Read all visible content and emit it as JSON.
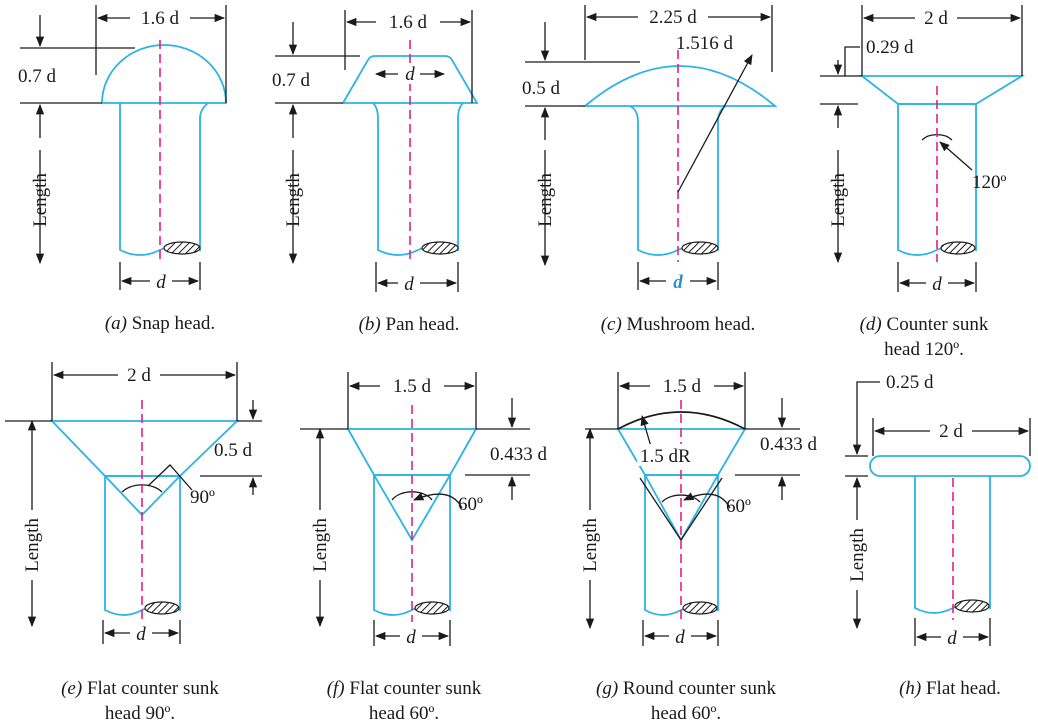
{
  "colors": {
    "outline": "#2bb3e6",
    "centerline": "#e0218a",
    "dimension": "#1a1a1a"
  },
  "rivets": [
    {
      "id": "a",
      "caption_letter": "(a)",
      "caption_lines": [
        "Snap head."
      ],
      "dims": {
        "head_width": "1.6 d",
        "head_height": "0.7 d",
        "shank": "d",
        "length": "Length"
      }
    },
    {
      "id": "b",
      "caption_letter": "(b)",
      "caption_lines": [
        "Pan head."
      ],
      "dims": {
        "head_width": "1.6 d",
        "head_top": "d",
        "head_height": "0.7 d",
        "shank": "d",
        "length": "Length"
      }
    },
    {
      "id": "c",
      "caption_letter": "(c)",
      "caption_lines": [
        "Mushroom head."
      ],
      "dims": {
        "head_width": "2.25 d",
        "radius": "1.516 d",
        "head_height": "0.5 d",
        "shank": "d",
        "length": "Length"
      }
    },
    {
      "id": "d",
      "caption_letter": "(d)",
      "caption_lines": [
        "Counter sunk",
        "head 120º."
      ],
      "dims": {
        "head_width": "2 d",
        "head_height": "0.29 d",
        "angle": "120º",
        "shank": "d",
        "length": "Length"
      }
    },
    {
      "id": "e",
      "caption_letter": "(e)",
      "caption_lines": [
        "Flat counter sunk",
        "head 90º."
      ],
      "dims": {
        "head_width": "2 d",
        "head_height": "0.5 d",
        "angle": "90º",
        "shank": "d",
        "length": "Length"
      }
    },
    {
      "id": "f",
      "caption_letter": "(f)",
      "caption_lines": [
        "Flat counter sunk",
        "head 60º."
      ],
      "dims": {
        "head_width": "1.5 d",
        "head_height": "0.433 d",
        "angle": "60º",
        "shank": "d",
        "length": "Length"
      }
    },
    {
      "id": "g",
      "caption_letter": "(g)",
      "caption_lines": [
        "Round counter sunk",
        "head 60º."
      ],
      "dims": {
        "head_width": "1.5 d",
        "radius": "1.5 dR",
        "head_height": "0.433 d",
        "angle": "60º",
        "shank": "d",
        "length": "Length"
      }
    },
    {
      "id": "h",
      "caption_letter": "(h)",
      "caption_lines": [
        "Flat head."
      ],
      "dims": {
        "head_width": "2 d",
        "head_height": "0.25 d",
        "shank": "d",
        "length": "Length"
      }
    }
  ]
}
